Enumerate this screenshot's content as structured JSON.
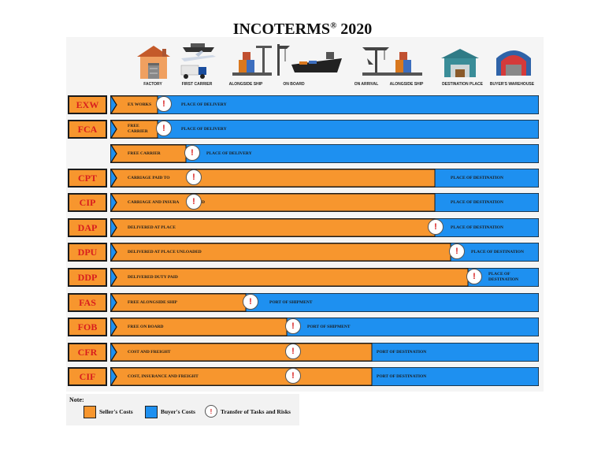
{
  "title": "INCOTERMS",
  "title_mark": "®",
  "title_year": "2020",
  "colors": {
    "seller": "#f7962e",
    "buyer": "#1e90f0",
    "code_text": "#d81e1e",
    "risk_mark": "#d81e1e"
  },
  "stages": [
    {
      "label": "FACTORY",
      "icon": "factory-icon"
    },
    {
      "label": "FIRST CARRIER",
      "icon": "first-carrier-icon"
    },
    {
      "label": "ALONGSIDE SHIP",
      "icon": "alongside-ship-icon"
    },
    {
      "label": "ON BOARD",
      "icon": "on-board-icon"
    },
    {
      "label": "ON ARRIVAL",
      "icon": "on-arrival-icon"
    },
    {
      "label": "ALONGSIDE SHIP",
      "icon": "alongside-ship-dest-icon"
    },
    {
      "label": "DESTINATION PLACE",
      "icon": "destination-place-icon"
    },
    {
      "label": "BUYER'S WAREHOUSE",
      "icon": "buyers-warehouse-icon"
    }
  ],
  "risk_symbol": "!",
  "terms": [
    {
      "code": "EXW",
      "seller_label": "EX WORKS",
      "buyer_label": "PLACE OF DELIVERY"
    },
    {
      "code": "FCA",
      "seller_label": "FREE CARRIER",
      "buyer_label": "PLACE OF DELIVERY"
    },
    {
      "code": "",
      "seller_label": "FREE CARRIER",
      "buyer_label": "PLACE OF DELIVERY"
    },
    {
      "code": "CPT",
      "seller_label": "CARRIAGE PAID TO",
      "buyer_label": "PLACE OF DESTINATION"
    },
    {
      "code": "CIP",
      "seller_label": "CARRIAGE AND INSURA",
      "seller_label_tail": "D",
      "buyer_label": "PLACE OF DESTINATION"
    },
    {
      "code": "DAP",
      "seller_label": "DELIVERED AT PLACE",
      "buyer_label": "PLACE OF DESTINATION"
    },
    {
      "code": "DPU",
      "seller_label": "DELIVERED AT PLACE UNLOADED",
      "buyer_label": "PLACE OF DESTINATION"
    },
    {
      "code": "DDP",
      "seller_label": "DELIVERED DUTY PAID",
      "buyer_label": "PLACE OF DESTINATION"
    },
    {
      "code": "FAS",
      "seller_label": "FREE ALONGSIDE SHIP",
      "buyer_label": "PORT OF SHIPMENT"
    },
    {
      "code": "FOB",
      "seller_label": "FREE ON BOARD",
      "buyer_label": "PORT OF SHIPMENT"
    },
    {
      "code": "CFR",
      "seller_label": "COST AND FREIGHT",
      "buyer_label": "PORT OF DESTINATION"
    },
    {
      "code": "CIF",
      "seller_label": "COST, INSURANCE AND FREIGHT",
      "buyer_label": "PORT OF DESTINATION"
    }
  ],
  "note": {
    "title": "Note:",
    "seller": "Seller's Costs",
    "buyer": "Buyer's Costs",
    "risk": "Transfer of Tasks and Risks"
  }
}
